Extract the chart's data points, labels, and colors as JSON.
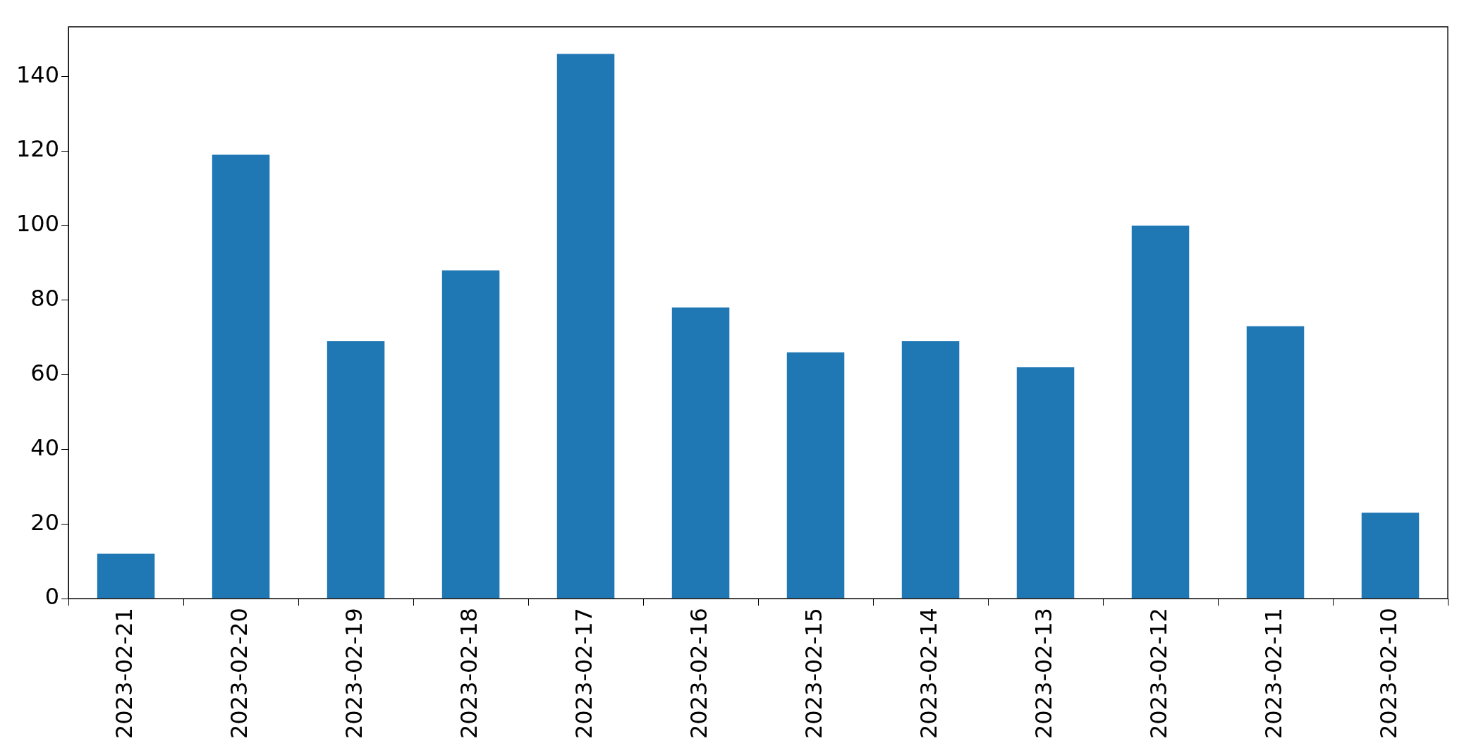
{
  "chart_data": {
    "type": "bar",
    "categories": [
      "2023-02-21",
      "2023-02-20",
      "2023-02-19",
      "2023-02-18",
      "2023-02-17",
      "2023-02-16",
      "2023-02-15",
      "2023-02-14",
      "2023-02-13",
      "2023-02-12",
      "2023-02-11",
      "2023-02-10"
    ],
    "values": [
      12,
      119,
      69,
      88,
      146,
      78,
      66,
      69,
      62,
      100,
      73,
      23
    ],
    "color": "#1f77b4",
    "ylim": [
      0,
      153.3
    ],
    "yticks": [
      0,
      20,
      40,
      60,
      80,
      100,
      120,
      140
    ],
    "grid": false,
    "legend": false
  }
}
